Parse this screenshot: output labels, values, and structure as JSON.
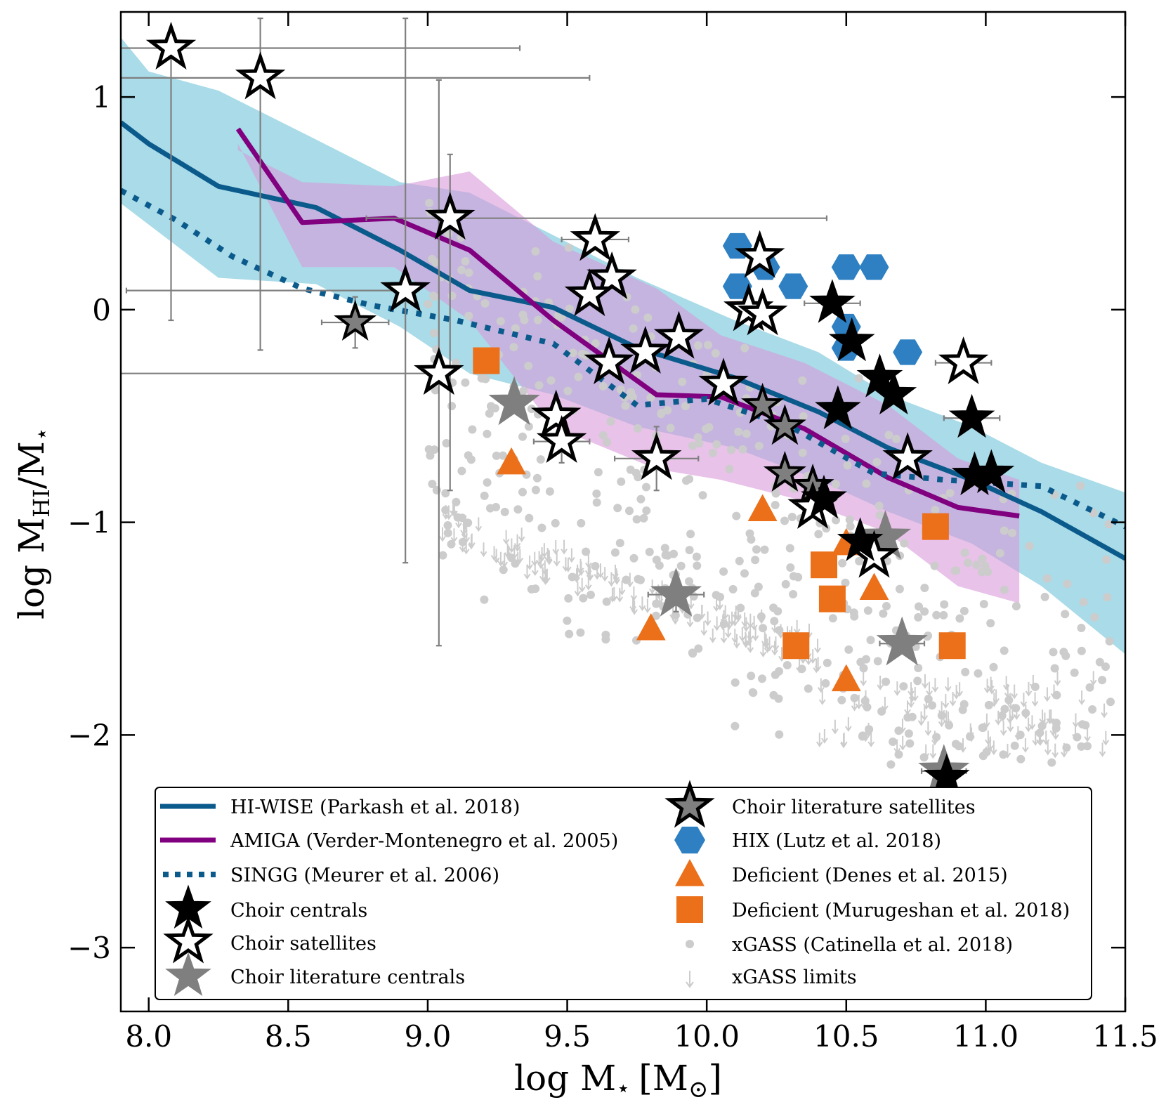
{
  "chart_data": {
    "type": "scatter",
    "title": "",
    "xlabel_main": "log M",
    "xlabel_sub": "⋆",
    "xlabel_unit": "[M",
    "xlabel_unit_sub": "⊙",
    "xlabel_unit_close": "]",
    "ylabel_main": "log M",
    "ylabel_sub1": "HI",
    "ylabel_mid": "/M",
    "ylabel_sub2": "⋆",
    "xlim": [
      7.9,
      11.5
    ],
    "ylim": [
      -3.3,
      1.4
    ],
    "xticks": [
      8.0,
      8.5,
      9.0,
      9.5,
      10.0,
      10.5,
      11.0,
      11.5
    ],
    "xtick_labels": [
      "8.0",
      "8.5",
      "9.0",
      "9.5",
      "10.0",
      "10.5",
      "11.0",
      "11.5"
    ],
    "yticks": [
      1,
      0,
      -1,
      -2,
      -3
    ],
    "ytick_labels": [
      "1",
      "0",
      "−1",
      "−2",
      "−3"
    ],
    "colors": {
      "hiwise": "#0b5a8c",
      "hiwise_band": "#a9dbe8",
      "amiga": "#800080",
      "amiga_band": "#d89ad8",
      "singg": "#0b5a8c",
      "hix": "#2e80c2",
      "deficient": "#ec6f19",
      "xgass": "#cccccc",
      "lit_central": "#7f7f7f",
      "errorbar": "#7f7f7f"
    },
    "series": [
      {
        "name": "HI-WISE (Parkash et al. 2018)",
        "style": "line",
        "x": [
          7.9,
          8.0,
          8.25,
          8.6,
          8.9,
          9.15,
          9.45,
          9.75,
          10.1,
          10.4,
          10.65,
          10.95,
          11.2,
          11.5
        ],
        "y": [
          0.88,
          0.78,
          0.58,
          0.48,
          0.28,
          0.09,
          0.01,
          -0.18,
          -0.32,
          -0.48,
          -0.65,
          -0.8,
          -0.95,
          -1.17
        ],
        "band_upper": [
          1.28,
          1.12,
          1.03,
          0.8,
          0.6,
          0.55,
          0.35,
          0.15,
          -0.05,
          -0.2,
          -0.4,
          -0.55,
          -0.72,
          -0.86
        ],
        "band_lower": [
          0.5,
          0.4,
          0.15,
          0.12,
          -0.08,
          -0.3,
          -0.4,
          -0.55,
          -0.65,
          -0.8,
          -0.95,
          -1.1,
          -1.3,
          -1.62
        ]
      },
      {
        "name": "AMIGA (Verder-Montenegro et al. 2005)",
        "style": "line",
        "x": [
          8.32,
          8.55,
          8.88,
          9.15,
          9.45,
          9.82,
          10.05,
          10.35,
          10.65,
          10.9,
          11.12
        ],
        "y": [
          0.85,
          0.41,
          0.43,
          0.28,
          -0.05,
          -0.4,
          -0.41,
          -0.56,
          -0.79,
          -0.93,
          -0.97
        ],
        "band_upper": [
          0.75,
          0.6,
          0.58,
          0.65,
          0.32,
          0.1,
          -0.12,
          -0.25,
          -0.45,
          -0.7,
          -0.8
        ],
        "band_lower": [
          0.78,
          0.2,
          0.2,
          -0.05,
          -0.55,
          -0.75,
          -0.8,
          -0.9,
          -1.05,
          -1.3,
          -1.38
        ]
      },
      {
        "name": "SINGG (Meurer et al. 2006)",
        "style": "dotted",
        "x": [
          7.9,
          8.1,
          8.3,
          8.55,
          8.8,
          9.1,
          9.45,
          9.75,
          10.0,
          10.3,
          10.6,
          10.85,
          11.2,
          11.5
        ],
        "y": [
          0.56,
          0.42,
          0.25,
          0.1,
          0.02,
          -0.05,
          -0.16,
          -0.45,
          -0.42,
          -0.55,
          -0.77,
          -0.8,
          -0.83,
          -1.02
        ]
      },
      {
        "name": "Choir centrals",
        "style": "marker",
        "x": [
          10.45,
          10.52,
          10.62,
          10.67,
          10.47,
          10.95,
          10.96,
          11.02,
          10.42,
          10.55,
          10.86
        ],
        "y": [
          0.03,
          -0.15,
          -0.32,
          -0.4,
          -0.47,
          -0.51,
          -0.78,
          -0.77,
          -0.89,
          -1.09,
          -2.2
        ]
      },
      {
        "name": "Choir satellites",
        "style": "marker",
        "x": [
          8.08,
          8.4,
          8.92,
          9.08,
          9.04,
          9.6,
          9.66,
          9.58,
          9.65,
          9.78,
          9.9,
          9.46,
          9.48,
          9.82,
          10.06,
          10.15,
          10.2,
          10.19,
          10.38,
          10.6,
          10.72,
          10.92
        ],
        "y": [
          1.23,
          1.09,
          0.09,
          0.43,
          -0.3,
          0.33,
          0.15,
          0.07,
          -0.25,
          -0.2,
          -0.13,
          -0.5,
          -0.62,
          -0.7,
          -0.35,
          0.0,
          -0.02,
          0.25,
          -0.93,
          -1.16,
          -0.7,
          -0.25
        ]
      },
      {
        "name": "Choir literature centrals",
        "style": "marker",
        "x": [
          9.31,
          9.89,
          10.64,
          10.7,
          10.85
        ],
        "y": [
          -0.44,
          -1.34,
          -1.07,
          -1.57,
          -2.17
        ]
      },
      {
        "name": "Choir literature satellites",
        "style": "marker",
        "x": [
          8.74,
          10.2,
          10.28,
          10.28,
          10.38
        ],
        "y": [
          -0.06,
          -0.45,
          -0.55,
          -0.77,
          -0.83
        ]
      },
      {
        "name": "HIX (Lutz et al. 2018)",
        "style": "marker",
        "x": [
          10.11,
          10.11,
          10.31,
          10.5,
          10.6,
          10.5,
          10.5,
          10.72,
          10.21
        ],
        "y": [
          0.3,
          0.11,
          0.11,
          0.2,
          0.2,
          -0.08,
          -0.18,
          -0.2,
          0.2
        ]
      },
      {
        "name": "Deficient (Denes et al. 2015)",
        "style": "marker",
        "x": [
          9.3,
          9.8,
          10.2,
          10.5,
          10.6,
          10.5
        ],
        "y": [
          -0.72,
          -1.5,
          -0.94,
          -1.1,
          -1.31,
          -1.74
        ]
      },
      {
        "name": "Deficient (Murugeshan et al. 2018)",
        "style": "marker",
        "x": [
          9.21,
          10.32,
          10.42,
          10.45,
          10.82,
          10.88
        ],
        "y": [
          -0.24,
          -1.58,
          -1.2,
          -1.36,
          -1.02,
          -1.58
        ]
      },
      {
        "name": "xGASS (Catinella et al. 2018)",
        "style": "marker"
      },
      {
        "name": "xGASS limits",
        "style": "marker"
      }
    ],
    "errorbars": [
      {
        "x": 8.08,
        "y": 1.23,
        "xerr": [
          0.3,
          1.25
        ],
        "yerr": [
          1.28,
          0
        ]
      },
      {
        "x": 8.4,
        "y": 1.09,
        "xerr": [
          0.5,
          1.18
        ],
        "yerr": [
          1.28,
          0.28
        ]
      },
      {
        "x": 8.92,
        "y": 0.09,
        "xerr": [
          1.0,
          0
        ],
        "yerr": [
          1.28,
          1.28
        ]
      },
      {
        "x": 9.08,
        "y": 0.43,
        "xerr": [
          0.3,
          1.35
        ],
        "yerr": [
          1.28,
          0.3
        ]
      },
      {
        "x": 9.04,
        "y": -0.3,
        "xerr": [
          1.2,
          0
        ],
        "yerr": [
          1.28,
          1.38
        ]
      },
      {
        "x": 8.74,
        "y": -0.06,
        "xerr": [
          0.12,
          0.12
        ],
        "yerr": [
          0.12,
          0.12
        ]
      },
      {
        "x": 9.6,
        "y": 0.33,
        "xerr": [
          0.12,
          0.12
        ],
        "yerr": [
          0,
          0
        ]
      },
      {
        "x": 9.48,
        "y": -0.62,
        "xerr": [
          0.1,
          0.1
        ],
        "yerr": [
          0.1,
          0.1
        ]
      },
      {
        "x": 9.82,
        "y": -0.7,
        "xerr": [
          0.15,
          0.15
        ],
        "yerr": [
          0.15,
          0.15
        ]
      },
      {
        "x": 9.89,
        "y": -1.34,
        "xerr": [
          0.1,
          0.1
        ],
        "yerr": [
          0.08,
          0.08
        ]
      },
      {
        "x": 10.45,
        "y": 0.03,
        "xerr": [
          0.1,
          0.1
        ],
        "yerr": [
          0,
          0
        ]
      },
      {
        "x": 10.92,
        "y": -0.25,
        "xerr": [
          0.1,
          0.1
        ],
        "yerr": [
          0,
          0
        ]
      },
      {
        "x": 10.95,
        "y": -0.51,
        "xerr": [
          0.1,
          0.1
        ],
        "yerr": [
          0,
          0
        ]
      },
      {
        "x": 10.7,
        "y": -1.57,
        "xerr": [
          0.08,
          0.08
        ],
        "yerr": [
          0,
          0
        ]
      },
      {
        "x": 10.85,
        "y": -2.17,
        "xerr": [
          0.08,
          0.08
        ],
        "yerr": [
          0.04,
          0.04
        ]
      }
    ],
    "legend": {
      "position": "lower-center",
      "entries": [
        "HI-WISE (Parkash et al. 2018)",
        "AMIGA (Verder-Montenegro et al. 2005)",
        "SINGG (Meurer et al. 2006)",
        "Choir centrals",
        "Choir satellites",
        "Choir literature centrals",
        "Choir literature satellites",
        "HIX (Lutz et al. 2018)",
        "Deficient (Denes et al. 2015)",
        "Deficient (Murugeshan et al. 2018)",
        "xGASS (Catinella et al. 2018)",
        "xGASS limits"
      ]
    }
  }
}
